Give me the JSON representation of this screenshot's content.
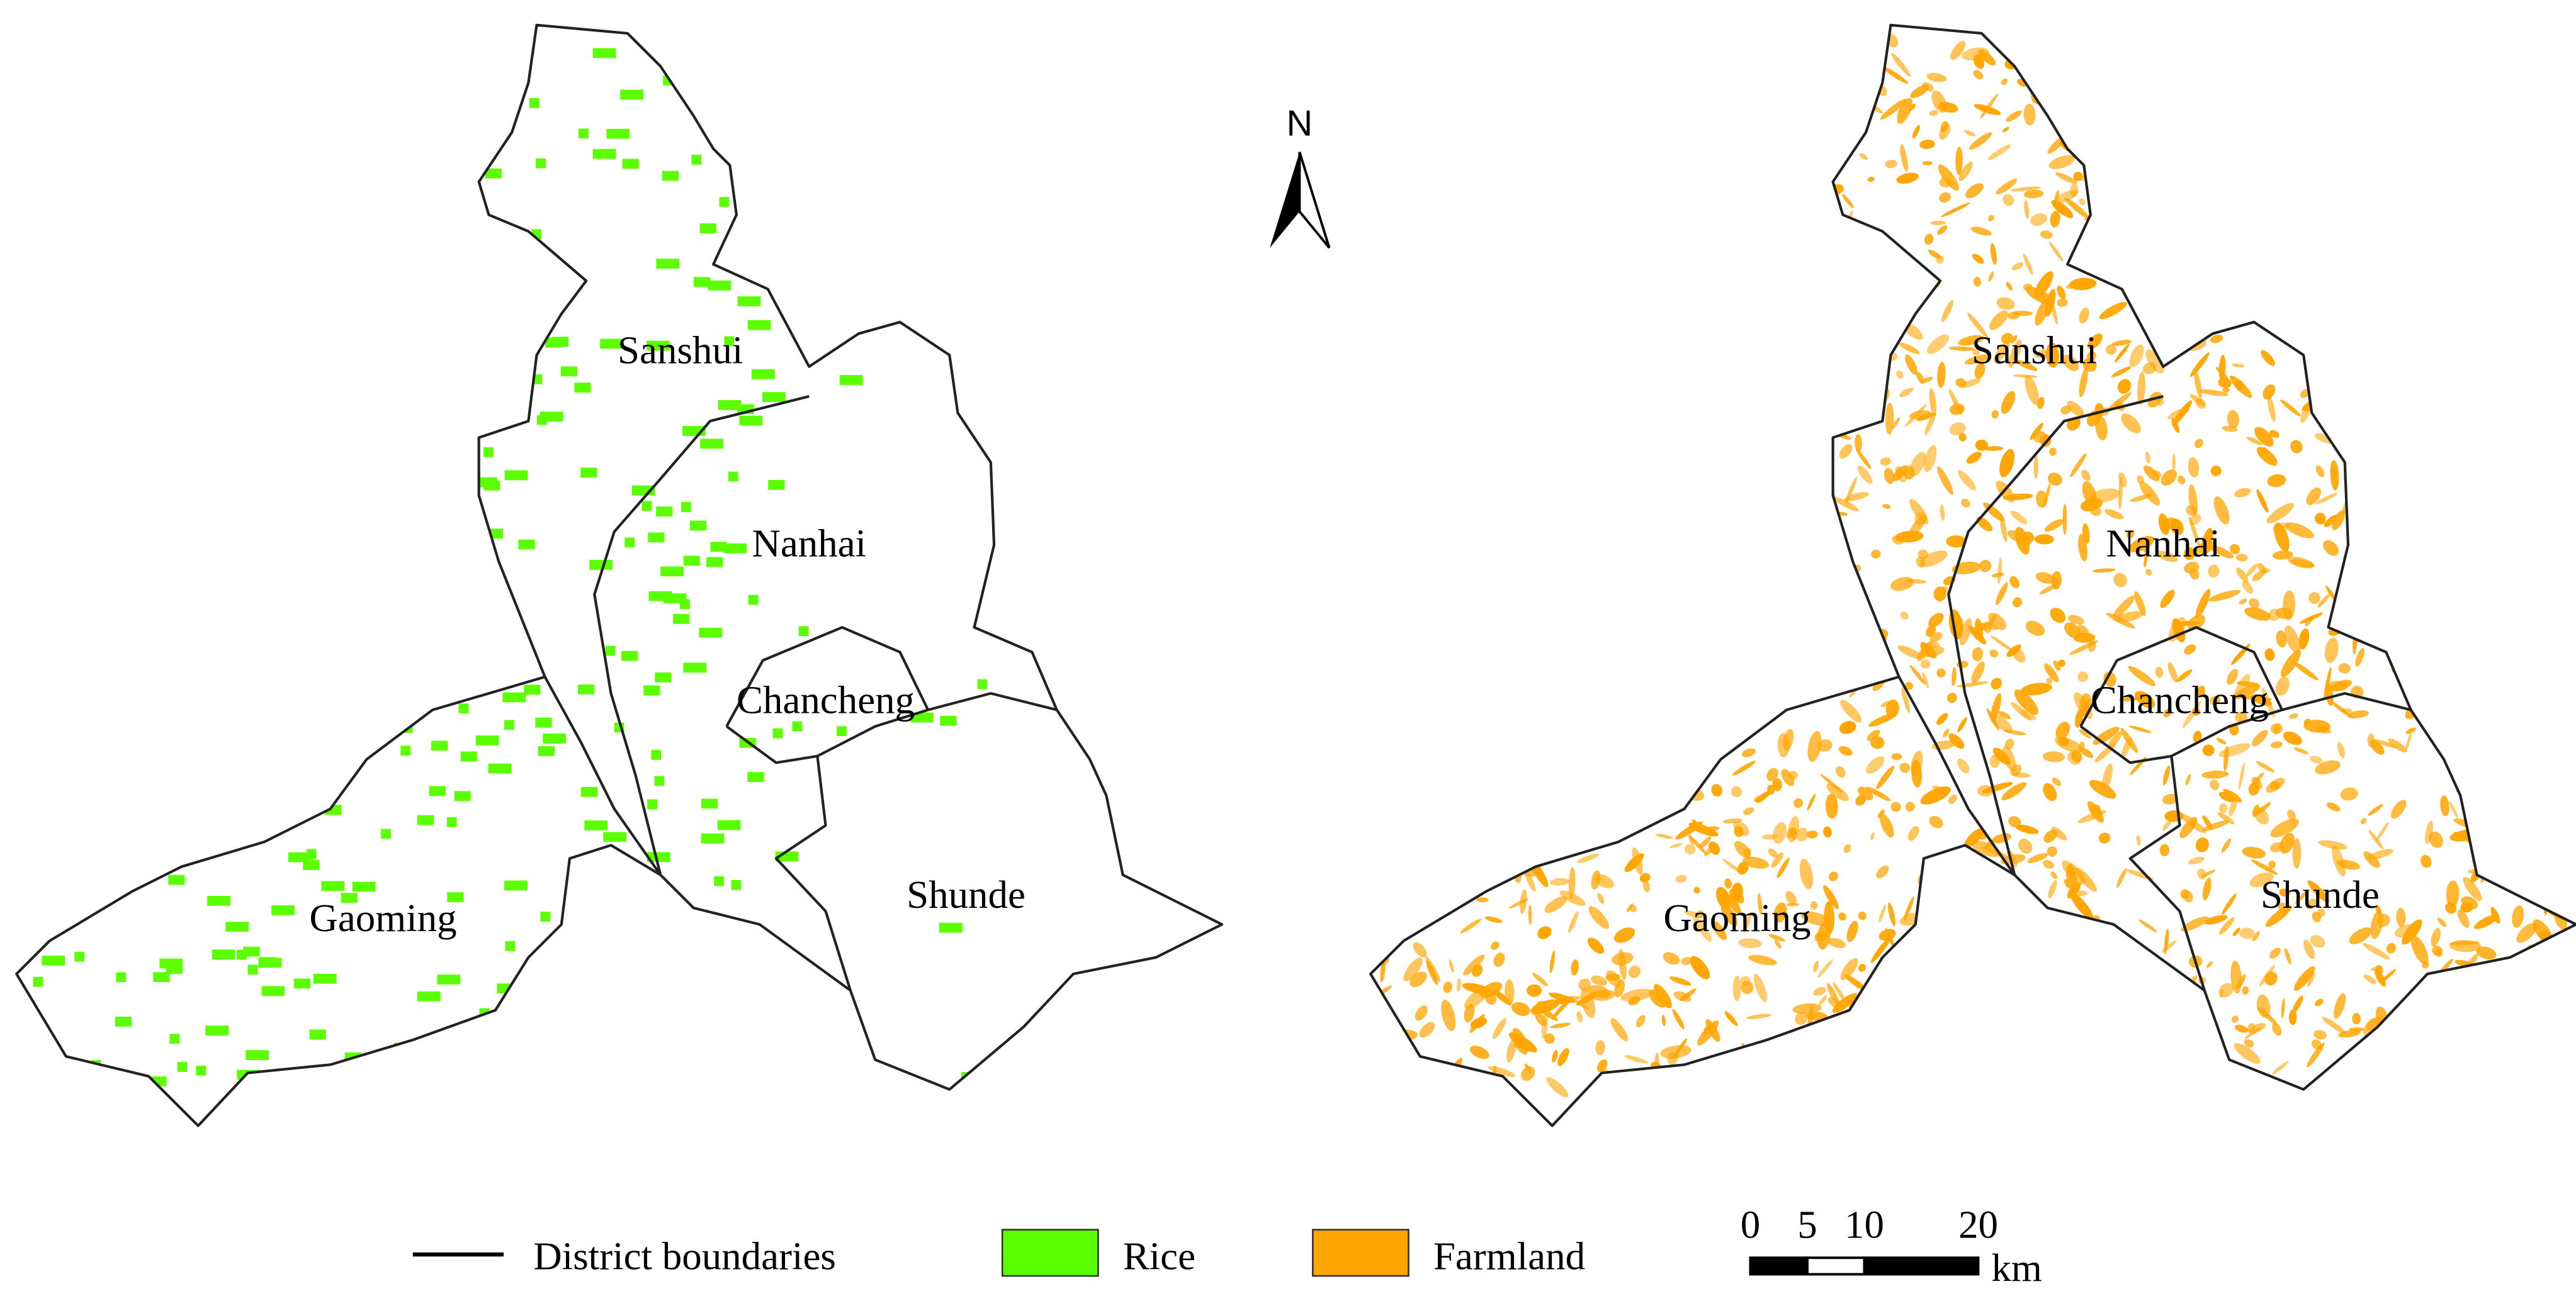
{
  "maps": [
    {
      "labels": [
        "Sanshui",
        "Nanhai",
        "Chancheng",
        "Shunde",
        "Gaoming"
      ],
      "patches": "Rice"
    },
    {
      "labels": [
        "Sanshui",
        "Nanhai",
        "Chancheng",
        "Shunde",
        "Gaoming"
      ],
      "patches": "Farmland"
    }
  ],
  "north": "N",
  "legend": [
    {
      "label": "District boundaries",
      "color": "#000000"
    },
    {
      "label": "Rice",
      "color": "#5cff00"
    },
    {
      "label": "Farmland",
      "color": "#ffa500"
    }
  ],
  "scale_bar": {
    "ticks": [
      0,
      5,
      10,
      20
    ],
    "unit": "km"
  }
}
